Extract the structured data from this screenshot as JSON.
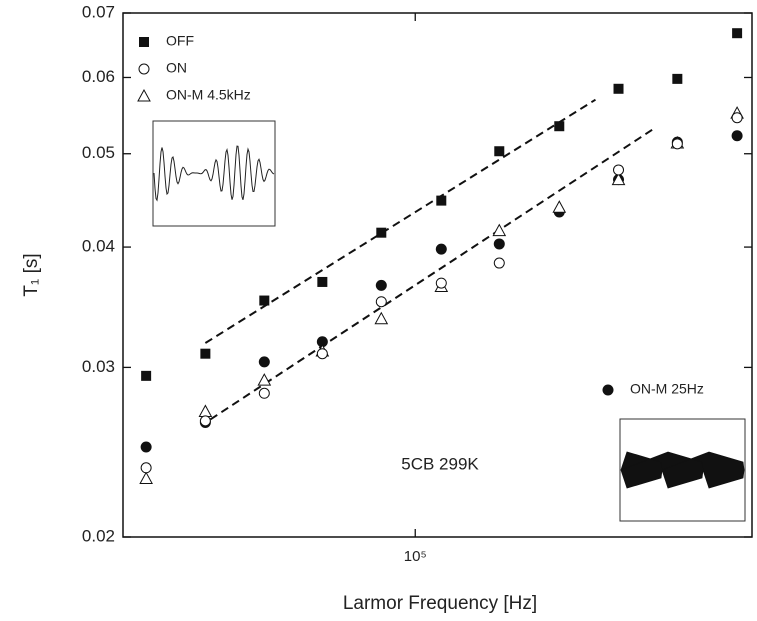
{
  "chart_data": {
    "type": "scatter",
    "xlabel": "Larmor Frequency [Hz]",
    "ylabel": "T₁ [s]",
    "log_x": true,
    "log_y": true,
    "xlim": [
      31980,
      372000
    ],
    "ylim": [
      0.02,
      0.07
    ],
    "xticks": [
      {
        "value": 100000,
        "label": "10⁵"
      }
    ],
    "yticks": [
      0.02,
      0.03,
      0.04,
      0.05,
      0.06,
      0.07
    ],
    "annotation": "5CB 299K",
    "x": [
      35000,
      44100,
      55500,
      69600,
      87600,
      110700,
      138800,
      175400,
      221000,
      278000,
      351000
    ],
    "series": [
      {
        "name": "OFF",
        "color": "#111111",
        "marker": "square",
        "values": [
          0.0294,
          0.031,
          0.0352,
          0.0368,
          0.0414,
          0.0447,
          0.0503,
          0.0534,
          0.0584,
          0.0598,
          0.0667
        ]
      },
      {
        "name": "ON",
        "color": "#111111",
        "marker": "circle-open",
        "values": [
          0.0236,
          0.0264,
          0.0282,
          0.031,
          0.0351,
          0.0367,
          0.0385,
          null,
          0.0481,
          0.0512,
          0.0545
        ]
      },
      {
        "name": "ON-M 4.5kHz",
        "color": "#111111",
        "marker": "triangle-open",
        "values": [
          0.023,
          0.027,
          0.0291,
          0.0312,
          0.0337,
          0.0364,
          0.0416,
          0.044,
          0.047,
          0.0513,
          0.0551
        ]
      },
      {
        "name": "ON-M 25Hz",
        "color": "#111111",
        "marker": "circle",
        "values": [
          0.0248,
          0.0263,
          0.0304,
          0.0319,
          0.0365,
          0.0398,
          0.0403,
          0.0435,
          0.047,
          0.0514,
          0.0522
        ]
      }
    ],
    "fit_lines": [
      {
        "x": [
          44100,
          202000
        ],
        "values": [
          0.0318,
          0.0569
        ]
      },
      {
        "x": [
          45000,
          255000
        ],
        "values": [
          0.0265,
          0.0532
        ]
      }
    ]
  }
}
